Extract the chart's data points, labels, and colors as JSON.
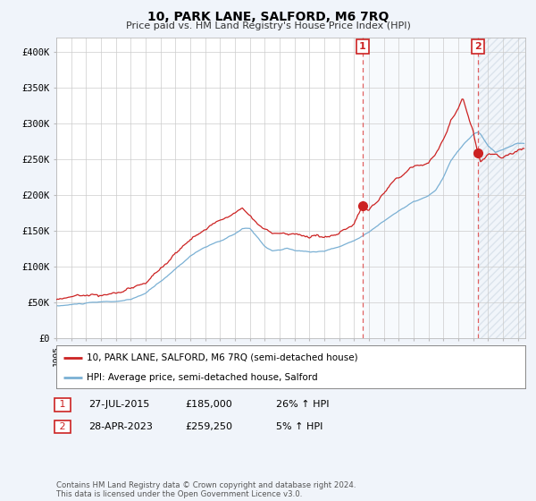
{
  "title": "10, PARK LANE, SALFORD, M6 7RQ",
  "subtitle": "Price paid vs. HM Land Registry's House Price Index (HPI)",
  "ylabel_ticks": [
    "£0",
    "£50K",
    "£100K",
    "£150K",
    "£200K",
    "£250K",
    "£300K",
    "£350K",
    "£400K"
  ],
  "ytick_values": [
    0,
    50000,
    100000,
    150000,
    200000,
    250000,
    300000,
    350000,
    400000
  ],
  "ylim": [
    0,
    420000
  ],
  "xlim_start": 1995.0,
  "xlim_end": 2026.5,
  "hpi_color": "#7ab0d4",
  "price_color": "#cc2222",
  "dashed_color": "#e06060",
  "sale1_x": 2015.58,
  "sale1_y": 185000,
  "sale2_x": 2023.32,
  "sale2_y": 259250,
  "sale1_label": "1",
  "sale2_label": "2",
  "legend_line1": "10, PARK LANE, SALFORD, M6 7RQ (semi-detached house)",
  "legend_line2": "HPI: Average price, semi-detached house, Salford",
  "table_row1": [
    "1",
    "27-JUL-2015",
    "£185,000",
    "26% ↑ HPI"
  ],
  "table_row2": [
    "2",
    "28-APR-2023",
    "£259,250",
    "5% ↑ HPI"
  ],
  "footnote": "Contains HM Land Registry data © Crown copyright and database right 2024.\nThis data is licensed under the Open Government Licence v3.0.",
  "bg_color": "#f0f4fa",
  "plot_bg": "#ffffff",
  "grid_color": "#cccccc",
  "shade_color": "#d8e8f5"
}
